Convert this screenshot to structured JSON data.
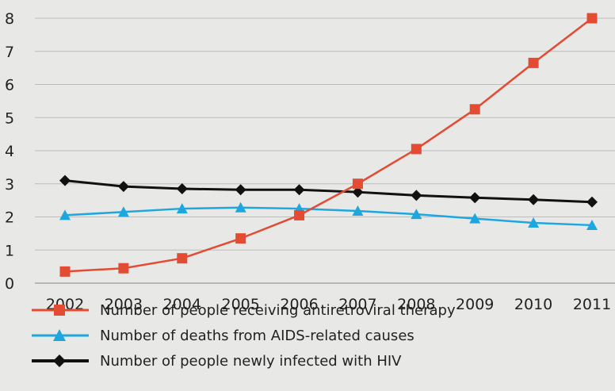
{
  "chart_data": {
    "type": "line",
    "categories": [
      "2002",
      "2003",
      "2004",
      "2005",
      "2006",
      "2007",
      "2008",
      "2009",
      "2010",
      "2011"
    ],
    "y_ticks": [
      "0",
      "1",
      "2",
      "3",
      "4",
      "5",
      "6",
      "7",
      "8"
    ],
    "ylim": [
      0,
      8
    ],
    "grid": true,
    "legend_position": "bottom",
    "series": [
      {
        "name": "Number of people receiving antiretroviral therapy",
        "color": "#e34b32",
        "marker": "square",
        "values": [
          0.35,
          0.45,
          0.75,
          1.35,
          2.05,
          3.0,
          4.05,
          5.25,
          6.65,
          8.0
        ]
      },
      {
        "name": "Number of deaths from AIDS-related causes",
        "color": "#1ea7df",
        "marker": "triangle",
        "values": [
          2.05,
          2.15,
          2.25,
          2.28,
          2.25,
          2.18,
          2.08,
          1.95,
          1.82,
          1.75
        ]
      },
      {
        "name": "Number of people newly infected with HIV",
        "color": "#111111",
        "marker": "diamond",
        "values": [
          3.1,
          2.92,
          2.85,
          2.82,
          2.82,
          2.75,
          2.65,
          2.58,
          2.52,
          2.45
        ]
      }
    ]
  }
}
